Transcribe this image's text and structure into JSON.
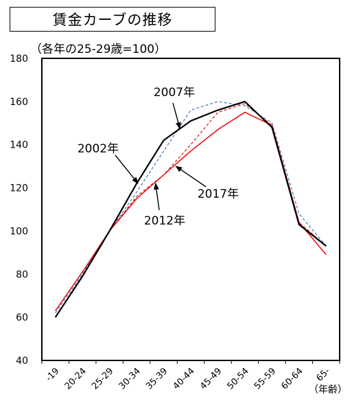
{
  "chart_data": {
    "type": "line",
    "title": "賃金カーブの推移",
    "subtitle": "（各年の25-29歳=100）",
    "xlabel": "（年齢）",
    "ylabel": "",
    "categories": [
      "-19",
      "20-24",
      "25-29",
      "30-34",
      "35-39",
      "40-44",
      "45-49",
      "50-54",
      "55-59",
      "60-64",
      "65-"
    ],
    "ylim": [
      40,
      180
    ],
    "yticks": [
      40,
      60,
      80,
      100,
      120,
      140,
      160,
      180
    ],
    "grid": false,
    "series": [
      {
        "name": "2002年",
        "color": "#000000",
        "style": "solid",
        "width": 2.2,
        "values": [
          60,
          79,
          100,
          122,
          142,
          151,
          156,
          160,
          148,
          103,
          93
        ]
      },
      {
        "name": "2007年",
        "color": "#4a7fc1",
        "style": "dashed",
        "width": 1.3,
        "values": [
          62,
          80,
          100,
          118,
          137,
          156,
          160,
          158,
          150,
          108,
          93
        ]
      },
      {
        "name": "2012年",
        "color": "#d42020",
        "style": "dashed",
        "width": 1.3,
        "values": [
          63,
          81,
          100,
          116,
          126,
          140,
          155,
          159,
          149,
          104,
          93
        ]
      },
      {
        "name": "2017年",
        "color": "#ee1111",
        "style": "solid",
        "width": 1.6,
        "values": [
          63,
          81,
          100,
          115,
          126,
          137,
          147,
          155,
          149,
          104,
          89
        ]
      }
    ],
    "annotations": [
      {
        "text": "2007年",
        "series": "2007年"
      },
      {
        "text": "2002年",
        "series": "2002年"
      },
      {
        "text": "2017年",
        "series": "2017年"
      },
      {
        "text": "2012年",
        "series": "2012年"
      }
    ]
  }
}
